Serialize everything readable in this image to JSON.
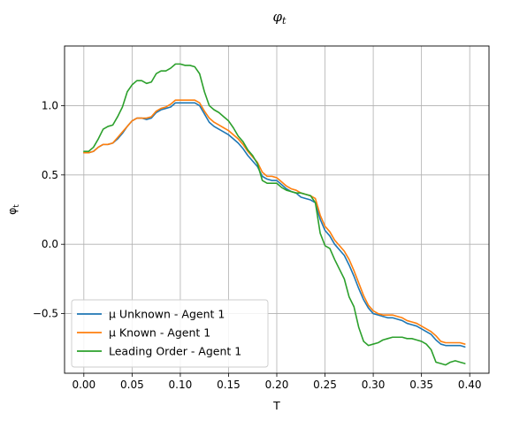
{
  "chart_data": {
    "type": "line",
    "title": "φt",
    "xlabel": "T",
    "ylabel": "φt",
    "xlim": [
      -0.02,
      0.42
    ],
    "ylim": [
      -0.93,
      1.43
    ],
    "grid": true,
    "legend_position": "lower-left",
    "x_ticks": [
      0.0,
      0.05,
      0.1,
      0.15,
      0.2,
      0.25,
      0.3,
      0.35,
      0.4
    ],
    "x_tick_labels": [
      "0.00",
      "0.05",
      "0.10",
      "0.15",
      "0.20",
      "0.25",
      "0.30",
      "0.35",
      "0.40"
    ],
    "y_ticks": [
      -0.5,
      0.0,
      0.5,
      1.0
    ],
    "y_tick_labels": [
      "−0.5",
      "0.0",
      "0.5",
      "1.0"
    ],
    "series": [
      {
        "name": "μ Unknown - Agent 1",
        "color": "#1f77b4",
        "x": [
          0.0,
          0.005,
          0.01,
          0.015,
          0.02,
          0.025,
          0.03,
          0.035,
          0.04,
          0.045,
          0.05,
          0.055,
          0.06,
          0.065,
          0.07,
          0.075,
          0.08,
          0.085,
          0.09,
          0.095,
          0.1,
          0.105,
          0.11,
          0.115,
          0.12,
          0.125,
          0.13,
          0.135,
          0.14,
          0.145,
          0.15,
          0.155,
          0.16,
          0.165,
          0.17,
          0.175,
          0.18,
          0.185,
          0.19,
          0.195,
          0.2,
          0.205,
          0.21,
          0.215,
          0.22,
          0.225,
          0.23,
          0.235,
          0.24,
          0.245,
          0.25,
          0.255,
          0.26,
          0.265,
          0.27,
          0.275,
          0.28,
          0.285,
          0.29,
          0.295,
          0.3,
          0.305,
          0.31,
          0.315,
          0.32,
          0.325,
          0.33,
          0.335,
          0.34,
          0.345,
          0.35,
          0.355,
          0.36,
          0.365,
          0.37,
          0.375,
          0.38,
          0.385,
          0.39,
          0.395
        ],
        "values": [
          0.66,
          0.66,
          0.67,
          0.7,
          0.72,
          0.72,
          0.73,
          0.76,
          0.8,
          0.85,
          0.89,
          0.91,
          0.91,
          0.9,
          0.91,
          0.95,
          0.97,
          0.98,
          0.99,
          1.02,
          1.02,
          1.02,
          1.02,
          1.02,
          1.0,
          0.94,
          0.88,
          0.85,
          0.83,
          0.81,
          0.79,
          0.76,
          0.73,
          0.69,
          0.64,
          0.6,
          0.56,
          0.49,
          0.47,
          0.46,
          0.46,
          0.43,
          0.4,
          0.38,
          0.37,
          0.34,
          0.33,
          0.32,
          0.3,
          0.18,
          0.1,
          0.06,
          0.0,
          -0.04,
          -0.08,
          -0.15,
          -0.23,
          -0.32,
          -0.4,
          -0.46,
          -0.5,
          -0.51,
          -0.52,
          -0.53,
          -0.53,
          -0.54,
          -0.55,
          -0.57,
          -0.58,
          -0.59,
          -0.61,
          -0.63,
          -0.65,
          -0.69,
          -0.72,
          -0.73,
          -0.73,
          -0.73,
          -0.73,
          -0.74
        ]
      },
      {
        "name": "μ Known - Agent 1",
        "color": "#ff7f0e",
        "x": [
          0.0,
          0.005,
          0.01,
          0.015,
          0.02,
          0.025,
          0.03,
          0.035,
          0.04,
          0.045,
          0.05,
          0.055,
          0.06,
          0.065,
          0.07,
          0.075,
          0.08,
          0.085,
          0.09,
          0.095,
          0.1,
          0.105,
          0.11,
          0.115,
          0.12,
          0.125,
          0.13,
          0.135,
          0.14,
          0.145,
          0.15,
          0.155,
          0.16,
          0.165,
          0.17,
          0.175,
          0.18,
          0.185,
          0.19,
          0.195,
          0.2,
          0.205,
          0.21,
          0.215,
          0.22,
          0.225,
          0.23,
          0.235,
          0.24,
          0.245,
          0.25,
          0.255,
          0.26,
          0.265,
          0.27,
          0.275,
          0.28,
          0.285,
          0.29,
          0.295,
          0.3,
          0.305,
          0.31,
          0.315,
          0.32,
          0.325,
          0.33,
          0.335,
          0.34,
          0.345,
          0.35,
          0.355,
          0.36,
          0.365,
          0.37,
          0.375,
          0.38,
          0.385,
          0.39,
          0.395
        ],
        "values": [
          0.66,
          0.66,
          0.67,
          0.7,
          0.72,
          0.72,
          0.73,
          0.77,
          0.81,
          0.85,
          0.89,
          0.91,
          0.91,
          0.91,
          0.92,
          0.96,
          0.98,
          0.99,
          1.01,
          1.04,
          1.04,
          1.04,
          1.04,
          1.04,
          1.02,
          0.96,
          0.91,
          0.88,
          0.86,
          0.84,
          0.82,
          0.79,
          0.76,
          0.72,
          0.67,
          0.63,
          0.59,
          0.52,
          0.49,
          0.49,
          0.48,
          0.45,
          0.42,
          0.4,
          0.39,
          0.37,
          0.36,
          0.35,
          0.33,
          0.21,
          0.13,
          0.09,
          0.03,
          -0.01,
          -0.05,
          -0.11,
          -0.19,
          -0.28,
          -0.37,
          -0.44,
          -0.48,
          -0.5,
          -0.51,
          -0.51,
          -0.51,
          -0.52,
          -0.53,
          -0.55,
          -0.56,
          -0.57,
          -0.59,
          -0.61,
          -0.63,
          -0.66,
          -0.7,
          -0.71,
          -0.71,
          -0.71,
          -0.71,
          -0.72
        ]
      },
      {
        "name": "Leading Order - Agent 1",
        "color": "#2ca02c",
        "x": [
          0.0,
          0.005,
          0.01,
          0.015,
          0.02,
          0.025,
          0.03,
          0.035,
          0.04,
          0.045,
          0.05,
          0.055,
          0.06,
          0.065,
          0.07,
          0.075,
          0.08,
          0.085,
          0.09,
          0.095,
          0.1,
          0.105,
          0.11,
          0.115,
          0.12,
          0.125,
          0.13,
          0.135,
          0.14,
          0.145,
          0.15,
          0.155,
          0.16,
          0.165,
          0.17,
          0.175,
          0.18,
          0.185,
          0.19,
          0.195,
          0.2,
          0.205,
          0.21,
          0.215,
          0.22,
          0.225,
          0.23,
          0.235,
          0.24,
          0.245,
          0.25,
          0.255,
          0.26,
          0.265,
          0.27,
          0.275,
          0.28,
          0.285,
          0.29,
          0.295,
          0.3,
          0.305,
          0.31,
          0.315,
          0.32,
          0.325,
          0.33,
          0.335,
          0.34,
          0.345,
          0.35,
          0.355,
          0.36,
          0.365,
          0.37,
          0.375,
          0.38,
          0.385,
          0.39,
          0.395
        ],
        "values": [
          0.67,
          0.67,
          0.7,
          0.76,
          0.83,
          0.85,
          0.86,
          0.92,
          0.99,
          1.1,
          1.15,
          1.18,
          1.18,
          1.16,
          1.17,
          1.23,
          1.25,
          1.25,
          1.27,
          1.3,
          1.3,
          1.29,
          1.29,
          1.28,
          1.23,
          1.1,
          1.0,
          0.97,
          0.95,
          0.92,
          0.89,
          0.84,
          0.78,
          0.74,
          0.68,
          0.64,
          0.58,
          0.46,
          0.44,
          0.44,
          0.44,
          0.41,
          0.39,
          0.38,
          0.37,
          0.37,
          0.36,
          0.35,
          0.3,
          0.08,
          -0.01,
          -0.03,
          -0.11,
          -0.18,
          -0.25,
          -0.38,
          -0.45,
          -0.6,
          -0.7,
          -0.73,
          -0.72,
          -0.71,
          -0.69,
          -0.68,
          -0.67,
          -0.67,
          -0.67,
          -0.68,
          -0.68,
          -0.69,
          -0.7,
          -0.72,
          -0.76,
          -0.85,
          -0.86,
          -0.87,
          -0.85,
          -0.84,
          -0.85,
          -0.86
        ]
      }
    ]
  }
}
